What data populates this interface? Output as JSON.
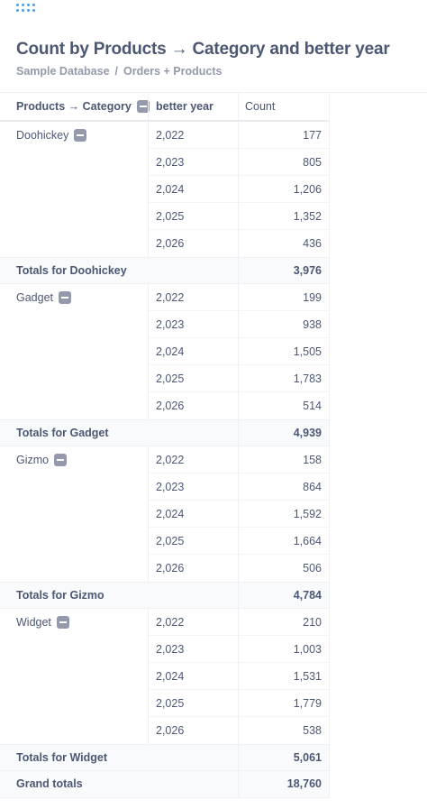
{
  "header": {
    "title": "Count by Products → Category and better year",
    "breadcrumb": [
      "Sample Database",
      "Orders + Products"
    ],
    "breadcrumb_sep": "/"
  },
  "table": {
    "columns": [
      "Products → Category",
      "better year",
      "Count"
    ],
    "groups": [
      {
        "category": "Doohickey",
        "rows": [
          [
            "2,022",
            "177"
          ],
          [
            "2,023",
            "805"
          ],
          [
            "2,024",
            "1,206"
          ],
          [
            "2,025",
            "1,352"
          ],
          [
            "2,026",
            "436"
          ]
        ],
        "total_label": "Totals for Doohickey",
        "total": "3,976"
      },
      {
        "category": "Gadget",
        "rows": [
          [
            "2,022",
            "199"
          ],
          [
            "2,023",
            "938"
          ],
          [
            "2,024",
            "1,505"
          ],
          [
            "2,025",
            "1,783"
          ],
          [
            "2,026",
            "514"
          ]
        ],
        "total_label": "Totals for Gadget",
        "total": "4,939"
      },
      {
        "category": "Gizmo",
        "rows": [
          [
            "2,022",
            "158"
          ],
          [
            "2,023",
            "864"
          ],
          [
            "2,024",
            "1,592"
          ],
          [
            "2,025",
            "1,664"
          ],
          [
            "2,026",
            "506"
          ]
        ],
        "total_label": "Totals for Gizmo",
        "total": "4,784"
      },
      {
        "category": "Widget",
        "rows": [
          [
            "2,022",
            "210"
          ],
          [
            "2,023",
            "1,003"
          ],
          [
            "2,024",
            "1,531"
          ],
          [
            "2,025",
            "1,779"
          ],
          [
            "2,026",
            "538"
          ]
        ],
        "total_label": "Totals for Widget",
        "total": "5,061"
      }
    ],
    "grand_total_label": "Grand totals",
    "grand_total": "18,760"
  }
}
